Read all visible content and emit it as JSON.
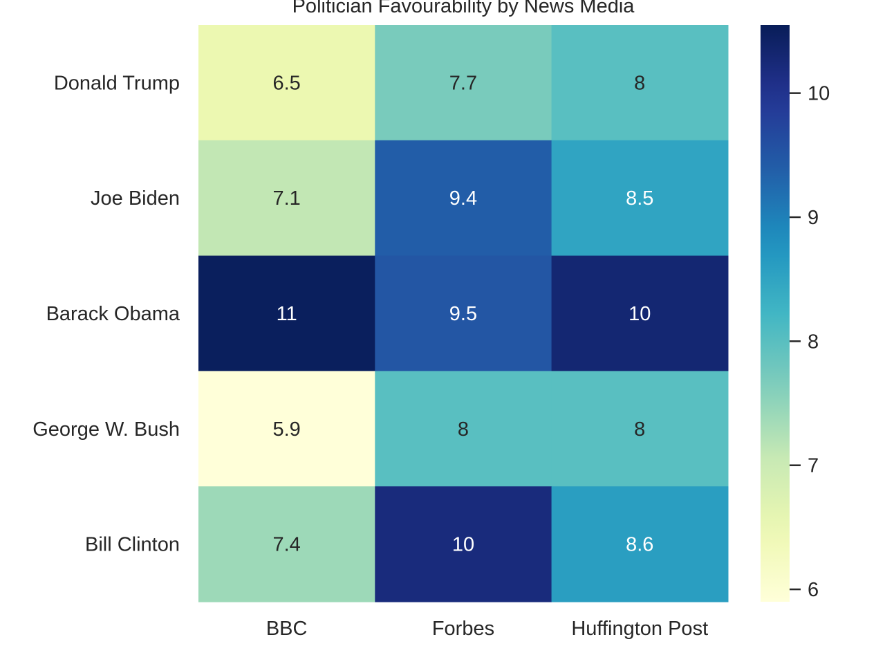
{
  "chart_data": {
    "type": "heatmap",
    "title": "Politician Favourability by News Media",
    "rows": [
      "Donald Trump",
      "Joe Biden",
      "Barack Obama",
      "George W. Bush",
      "Bill Clinton"
    ],
    "columns": [
      "BBC",
      "Forbes",
      "Huffington Post"
    ],
    "values": [
      [
        6.5,
        7.7,
        8.0
      ],
      [
        7.1,
        9.4,
        8.5
      ],
      [
        10.5,
        9.5,
        10.3
      ],
      [
        5.9,
        8.0,
        8.0
      ],
      [
        7.4,
        10.2,
        8.6
      ]
    ],
    "cell_labels": [
      [
        "6.5",
        "7.7",
        "8"
      ],
      [
        "7.1",
        "9.4",
        "8.5"
      ],
      [
        "11",
        "9.5",
        "10"
      ],
      [
        "5.9",
        "8",
        "8"
      ],
      [
        "7.4",
        "10",
        "8.6"
      ]
    ],
    "colormap": "YlGnBu",
    "colorbar": {
      "vmin": 5.9,
      "vmax": 10.55,
      "ticks": [
        6,
        7,
        8,
        9,
        10
      ],
      "tick_labels": [
        "6",
        "7",
        "8",
        "9",
        "10"
      ]
    },
    "grid": false,
    "legend": "colorbar-right"
  }
}
